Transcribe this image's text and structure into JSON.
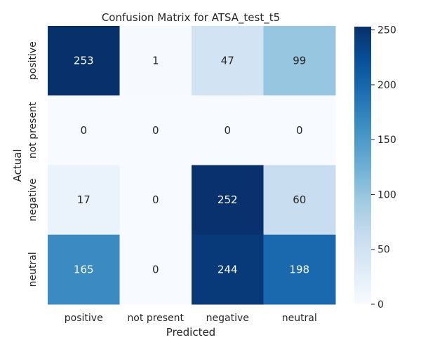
{
  "chart_data": {
    "type": "heatmap",
    "title": "Confusion Matrix for ATSA_test_t5",
    "xlabel": "Predicted",
    "ylabel": "Actual",
    "x_categories": [
      "positive",
      "not present",
      "negative",
      "neutral"
    ],
    "y_categories": [
      "positive",
      "not present",
      "negative",
      "neutral"
    ],
    "values": [
      [
        253,
        1,
        47,
        99
      ],
      [
        0,
        0,
        0,
        0
      ],
      [
        17,
        0,
        252,
        60
      ],
      [
        165,
        0,
        244,
        198
      ]
    ],
    "colorbar": {
      "colormap": "Blues",
      "vmin": 0,
      "vmax": 253,
      "ticks": [
        0,
        50,
        100,
        150,
        200,
        250
      ]
    },
    "grid": false
  }
}
